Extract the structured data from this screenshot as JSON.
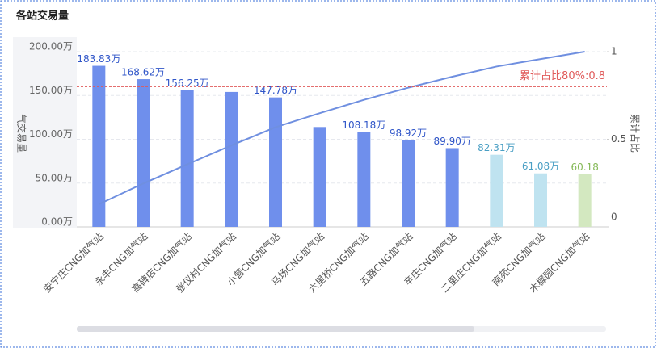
{
  "chart_data": {
    "type": "bar",
    "title": "各站交易量",
    "ylabel": "气交易量",
    "y2label": "累计占比",
    "categories": [
      "安宁庄CNG加气站",
      "永丰CNG加气站",
      "高碑店CNG加气站",
      "张仪村CNG加气站",
      "小营CNG加气站",
      "马场CNG加气站",
      "六里桥CNG加气站",
      "五路CNG加气站",
      "辛庄CNG加气站",
      "二里庄CNG加气站",
      "南苑CNG加气站",
      "木樨园CNG加气站"
    ],
    "series": [
      {
        "values": [
          183.83,
          168.62,
          156.25,
          154,
          147.78,
          114,
          108.18,
          98.92,
          89.9,
          82.31,
          61.08,
          60.18
        ],
        "value_labels": [
          "183.83万",
          "168.62万",
          "156.25万",
          null,
          "147.78万",
          null,
          "108.18万",
          "98.92万",
          "89.90万",
          "82.31万",
          "61.08万",
          "60.18"
        ],
        "colors": [
          "#6f8fec",
          "#6f8fec",
          "#6f8fec",
          "#6f8fec",
          "#6f8fec",
          "#6f8fec",
          "#6f8fec",
          "#6f8fec",
          "#6f8fec",
          "#bfe3f0",
          "#bfe3f0",
          "#d3e8c0"
        ],
        "label_colors": [
          "#2f55c8",
          "#2f55c8",
          "#2f55c8",
          "#2f55c8",
          "#2f55c8",
          "#2f55c8",
          "#2f55c8",
          "#2f55c8",
          "#2f55c8",
          "#4a9fc4",
          "#4a9fc4",
          "#85b957"
        ]
      },
      {
        "type": "line",
        "axis": "y2",
        "color": "#6f8fe0",
        "values": [
          0.129,
          0.247,
          0.357,
          0.465,
          0.569,
          0.649,
          0.725,
          0.794,
          0.857,
          0.915,
          0.958,
          1.0
        ]
      }
    ],
    "ylim": [
      0,
      200
    ],
    "yticks": [
      {
        "value": 0,
        "label": "0.00万"
      },
      {
        "value": 50,
        "label": "50.00万"
      },
      {
        "value": 100,
        "label": "100.00万"
      },
      {
        "value": 150,
        "label": "150.00万"
      },
      {
        "value": 200,
        "label": "200.00万"
      }
    ],
    "y2lim": [
      0,
      1
    ],
    "y2ticks": [
      0,
      0.5,
      1
    ],
    "markline": {
      "value": 0.8,
      "label": "累计占比80%:0.8",
      "color": "#e05a5a"
    },
    "grid": true
  }
}
